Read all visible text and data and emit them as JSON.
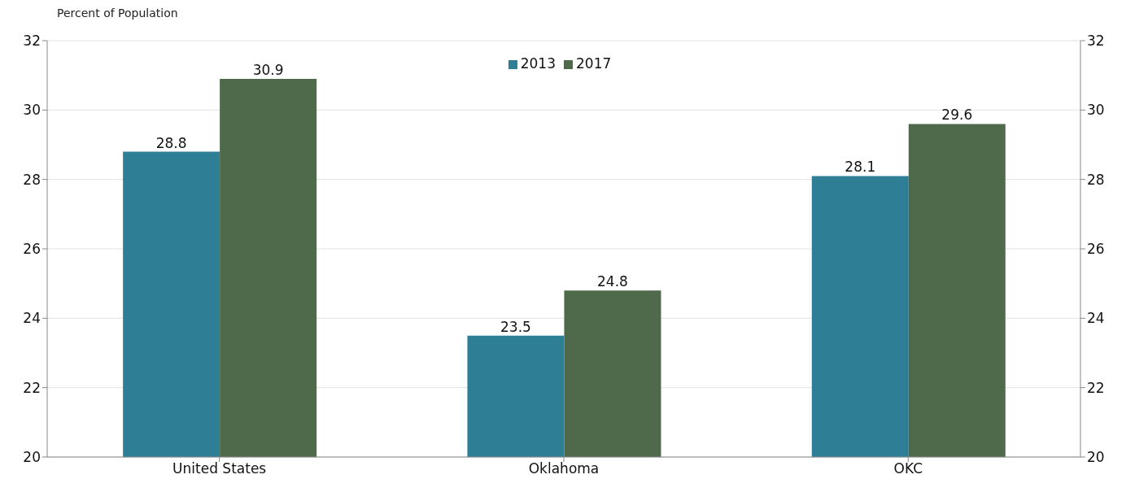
{
  "chart_data": {
    "type": "bar",
    "ylabel": "Percent of Population",
    "categories": [
      "United States",
      "Oklahoma",
      "OKC"
    ],
    "series": [
      {
        "name": "2013",
        "color": "#2e7f96",
        "values": [
          28.8,
          23.5,
          28.1
        ]
      },
      {
        "name": "2017",
        "color": "#4e6a4a",
        "values": [
          30.9,
          24.8,
          29.6
        ]
      }
    ],
    "ylim": [
      20,
      32
    ],
    "yticks": [
      20,
      22,
      24,
      26,
      28,
      30,
      32
    ],
    "y2lim": [
      20,
      32
    ],
    "y2ticks": [
      20,
      22,
      24,
      26,
      28,
      30,
      32
    ],
    "grid": "y",
    "legend": "top",
    "data_labels": true
  }
}
